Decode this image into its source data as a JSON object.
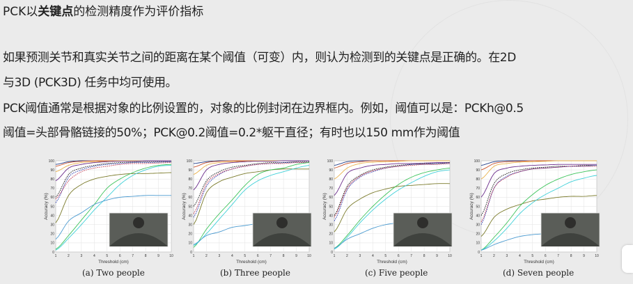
{
  "slide": {
    "title_prefix": "PCK以",
    "title_bold": "关键点",
    "title_suffix": "的检测精度作为评价指标",
    "paragraphs": [
      "如果预测关节和真实关节之间的距离在某个阈值（可变）内，则认为检测到的关键点是正确的。在2D",
      "与3D (PCK3D) 任务中均可使用。",
      "PCK阈值通常是根据对象的比例设置的，对象的比例封闭在边界框内。例如，阈值可以是：PCKh@0.5",
      "阈值=头部骨骼链接的50%；PCK@0.2阈值=0.2*躯干直径；有时也以150 mm作为阈值"
    ]
  },
  "chart_data": [
    {
      "type": "line",
      "caption": "(a) Two people",
      "xlabel": "Threshold (cm)",
      "ylabel": "Accuracy (%)",
      "xlim": [
        1,
        10
      ],
      "ylim": [
        0,
        100
      ],
      "grid": true,
      "x": [
        1,
        2,
        3,
        4,
        5,
        6,
        7,
        8,
        9,
        10
      ],
      "series": [
        {
          "color": "#1f3c88",
          "dashed": false,
          "values": [
            96,
            99,
            100,
            100,
            100,
            100,
            100,
            100,
            100,
            100
          ]
        },
        {
          "color": "#c8502a",
          "dashed": false,
          "values": [
            94,
            98,
            99.5,
            100,
            100,
            100,
            100,
            100,
            100,
            100
          ]
        },
        {
          "color": "#e8b04a",
          "dashed": false,
          "values": [
            88,
            95,
            98,
            99,
            99.5,
            100,
            100,
            100,
            100,
            100
          ]
        },
        {
          "color": "#6a2c8a",
          "dashed": false,
          "values": [
            78,
            92,
            96,
            98,
            99,
            99.5,
            99.5,
            100,
            100,
            100
          ]
        },
        {
          "color": "#111111",
          "dashed": true,
          "values": [
            60,
            85,
            92,
            95,
            97,
            98,
            98.5,
            99,
            99,
            99
          ]
        },
        {
          "color": "#2233aa",
          "dashed": true,
          "values": [
            54,
            82,
            90,
            94,
            96,
            97,
            98,
            98,
            98.5,
            99
          ]
        },
        {
          "color": "#c0304a",
          "dashed": true,
          "values": [
            58,
            78,
            88,
            92,
            94,
            96,
            97,
            97,
            97.5,
            98
          ]
        },
        {
          "color": "#7a7a2a",
          "dashed": false,
          "values": [
            32,
            62,
            74,
            80,
            83,
            85,
            86,
            86,
            86.5,
            87
          ]
        },
        {
          "color": "#3cc35a",
          "dashed": false,
          "values": [
            3,
            18,
            35,
            52,
            70,
            80,
            87,
            92,
            95,
            96
          ]
        },
        {
          "color": "#3fd0d8",
          "dashed": false,
          "values": [
            2,
            15,
            30,
            46,
            60,
            74,
            84,
            90,
            94,
            95
          ]
        },
        {
          "color": "#4a9ad0",
          "dashed": false,
          "values": [
            14,
            34,
            43,
            52,
            57,
            60,
            61,
            62,
            62,
            62
          ]
        }
      ]
    },
    {
      "type": "line",
      "caption": "(b) Three people",
      "xlabel": "Threshold (cm)",
      "ylabel": "Accuracy (%)",
      "xlim": [
        1,
        10
      ],
      "ylim": [
        0,
        100
      ],
      "grid": true,
      "x": [
        1,
        2,
        3,
        4,
        5,
        6,
        7,
        8,
        9,
        10
      ],
      "series": [
        {
          "color": "#1f3c88",
          "dashed": false,
          "values": [
            97,
            99,
            100,
            100,
            100,
            100,
            100,
            100,
            100,
            100
          ]
        },
        {
          "color": "#c8502a",
          "dashed": false,
          "values": [
            93,
            98,
            99.5,
            100,
            100,
            100,
            100,
            100,
            100,
            100
          ]
        },
        {
          "color": "#e8b04a",
          "dashed": false,
          "values": [
            85,
            95,
            98,
            99,
            99.5,
            100,
            100,
            100,
            100,
            100
          ]
        },
        {
          "color": "#6a2c8a",
          "dashed": false,
          "values": [
            68,
            90,
            96,
            98,
            99,
            99.5,
            99.5,
            100,
            100,
            100
          ]
        },
        {
          "color": "#111111",
          "dashed": true,
          "values": [
            50,
            78,
            88,
            93,
            95,
            97,
            98,
            98,
            99,
            99
          ]
        },
        {
          "color": "#2233aa",
          "dashed": true,
          "values": [
            38,
            72,
            85,
            91,
            94,
            96,
            97,
            98,
            98,
            98
          ]
        },
        {
          "color": "#c0304a",
          "dashed": true,
          "values": [
            42,
            75,
            86,
            91,
            94,
            96,
            97,
            97,
            98,
            98
          ]
        },
        {
          "color": "#7a7a2a",
          "dashed": false,
          "values": [
            30,
            65,
            77,
            82,
            86,
            88,
            90,
            91,
            91,
            91
          ]
        },
        {
          "color": "#3cc35a",
          "dashed": false,
          "values": [
            5,
            25,
            42,
            57,
            73,
            85,
            90,
            92,
            96,
            98
          ]
        },
        {
          "color": "#3fd0d8",
          "dashed": false,
          "values": [
            7,
            20,
            36,
            52,
            68,
            78,
            84,
            88,
            92,
            95
          ]
        },
        {
          "color": "#4a9ad0",
          "dashed": false,
          "values": [
            8,
            18,
            22,
            27,
            29,
            31,
            31,
            32,
            32,
            32
          ]
        }
      ]
    },
    {
      "type": "line",
      "caption": "(c) Five people",
      "xlabel": "Threshold (cm)",
      "ylabel": "Accuracy (%)",
      "xlim": [
        1,
        10
      ],
      "ylim": [
        0,
        100
      ],
      "grid": true,
      "x": [
        1,
        2,
        3,
        4,
        5,
        6,
        7,
        8,
        9,
        10
      ],
      "series": [
        {
          "color": "#1f3c88",
          "dashed": false,
          "values": [
            95,
            99,
            100,
            100,
            100,
            100,
            100,
            100,
            100,
            100
          ]
        },
        {
          "color": "#c8502a",
          "dashed": false,
          "values": [
            92,
            97,
            99,
            100,
            100,
            100,
            100,
            100,
            100,
            100
          ]
        },
        {
          "color": "#e8b04a",
          "dashed": false,
          "values": [
            80,
            92,
            97,
            98.5,
            99,
            99.5,
            100,
            100,
            100,
            100
          ]
        },
        {
          "color": "#6a2c8a",
          "dashed": false,
          "values": [
            62,
            86,
            92,
            95,
            96,
            97,
            97,
            97.5,
            98,
            98
          ]
        },
        {
          "color": "#111111",
          "dashed": true,
          "values": [
            40,
            72,
            84,
            90,
            93,
            95,
            96,
            97,
            97,
            98
          ]
        },
        {
          "color": "#2233aa",
          "dashed": true,
          "values": [
            34,
            68,
            82,
            88,
            92,
            94,
            96,
            96,
            97,
            97
          ]
        },
        {
          "color": "#c0304a",
          "dashed": true,
          "values": [
            38,
            70,
            83,
            89,
            92,
            94,
            95,
            96,
            96,
            97
          ]
        },
        {
          "color": "#7a7a2a",
          "dashed": false,
          "values": [
            22,
            47,
            58,
            65,
            69,
            72,
            73,
            74,
            75,
            75
          ]
        },
        {
          "color": "#3cc35a",
          "dashed": false,
          "values": [
            4,
            18,
            35,
            50,
            63,
            74,
            82,
            87,
            90,
            92
          ]
        },
        {
          "color": "#3fd0d8",
          "dashed": false,
          "values": [
            3,
            16,
            32,
            46,
            58,
            68,
            76,
            83,
            88,
            90
          ]
        },
        {
          "color": "#4a9ad0",
          "dashed": false,
          "values": [
            4,
            14,
            20,
            26,
            30,
            32,
            33,
            33,
            33,
            33
          ]
        }
      ]
    },
    {
      "type": "line",
      "caption": "(d) Seven people",
      "xlabel": "Threshold (cm)",
      "ylabel": "Accuracy (%)",
      "xlim": [
        1,
        10
      ],
      "ylim": [
        0,
        100
      ],
      "grid": true,
      "x": [
        1,
        2,
        3,
        4,
        5,
        6,
        7,
        8,
        9,
        10
      ],
      "series": [
        {
          "color": "#1f3c88",
          "dashed": false,
          "values": [
            95,
            99,
            100,
            100,
            100,
            100,
            100,
            100,
            100,
            100
          ]
        },
        {
          "color": "#c8502a",
          "dashed": false,
          "values": [
            90,
            97,
            99,
            99.5,
            100,
            100,
            100,
            100,
            100,
            100
          ]
        },
        {
          "color": "#e8b04a",
          "dashed": false,
          "values": [
            80,
            94,
            97,
            98.5,
            99,
            99.5,
            100,
            100,
            100,
            100
          ]
        },
        {
          "color": "#6a2c8a",
          "dashed": false,
          "values": [
            60,
            86,
            92,
            94,
            95,
            95.5,
            96,
            96,
            96,
            96
          ]
        },
        {
          "color": "#111111",
          "dashed": true,
          "values": [
            40,
            75,
            86,
            90,
            92,
            93,
            94,
            94,
            95,
            95
          ]
        },
        {
          "color": "#2233aa",
          "dashed": true,
          "values": [
            30,
            70,
            83,
            88,
            91,
            92,
            93,
            94,
            94,
            95
          ]
        },
        {
          "color": "#c0304a",
          "dashed": true,
          "values": [
            33,
            70,
            82,
            88,
            91,
            92,
            93,
            94,
            94,
            94
          ]
        },
        {
          "color": "#7a7a2a",
          "dashed": false,
          "values": [
            17,
            38,
            47,
            52,
            56,
            58,
            60,
            61,
            61,
            62
          ]
        },
        {
          "color": "#3cc35a",
          "dashed": false,
          "values": [
            2,
            16,
            32,
            50,
            63,
            73,
            80,
            85,
            88,
            90
          ]
        },
        {
          "color": "#3fd0d8",
          "dashed": false,
          "values": [
            2,
            12,
            26,
            42,
            54,
            63,
            70,
            77,
            81,
            84
          ]
        },
        {
          "color": "#4a9ad0",
          "dashed": false,
          "values": [
            2,
            8,
            13,
            17,
            19,
            20,
            20,
            21,
            21,
            21
          ]
        }
      ]
    }
  ]
}
